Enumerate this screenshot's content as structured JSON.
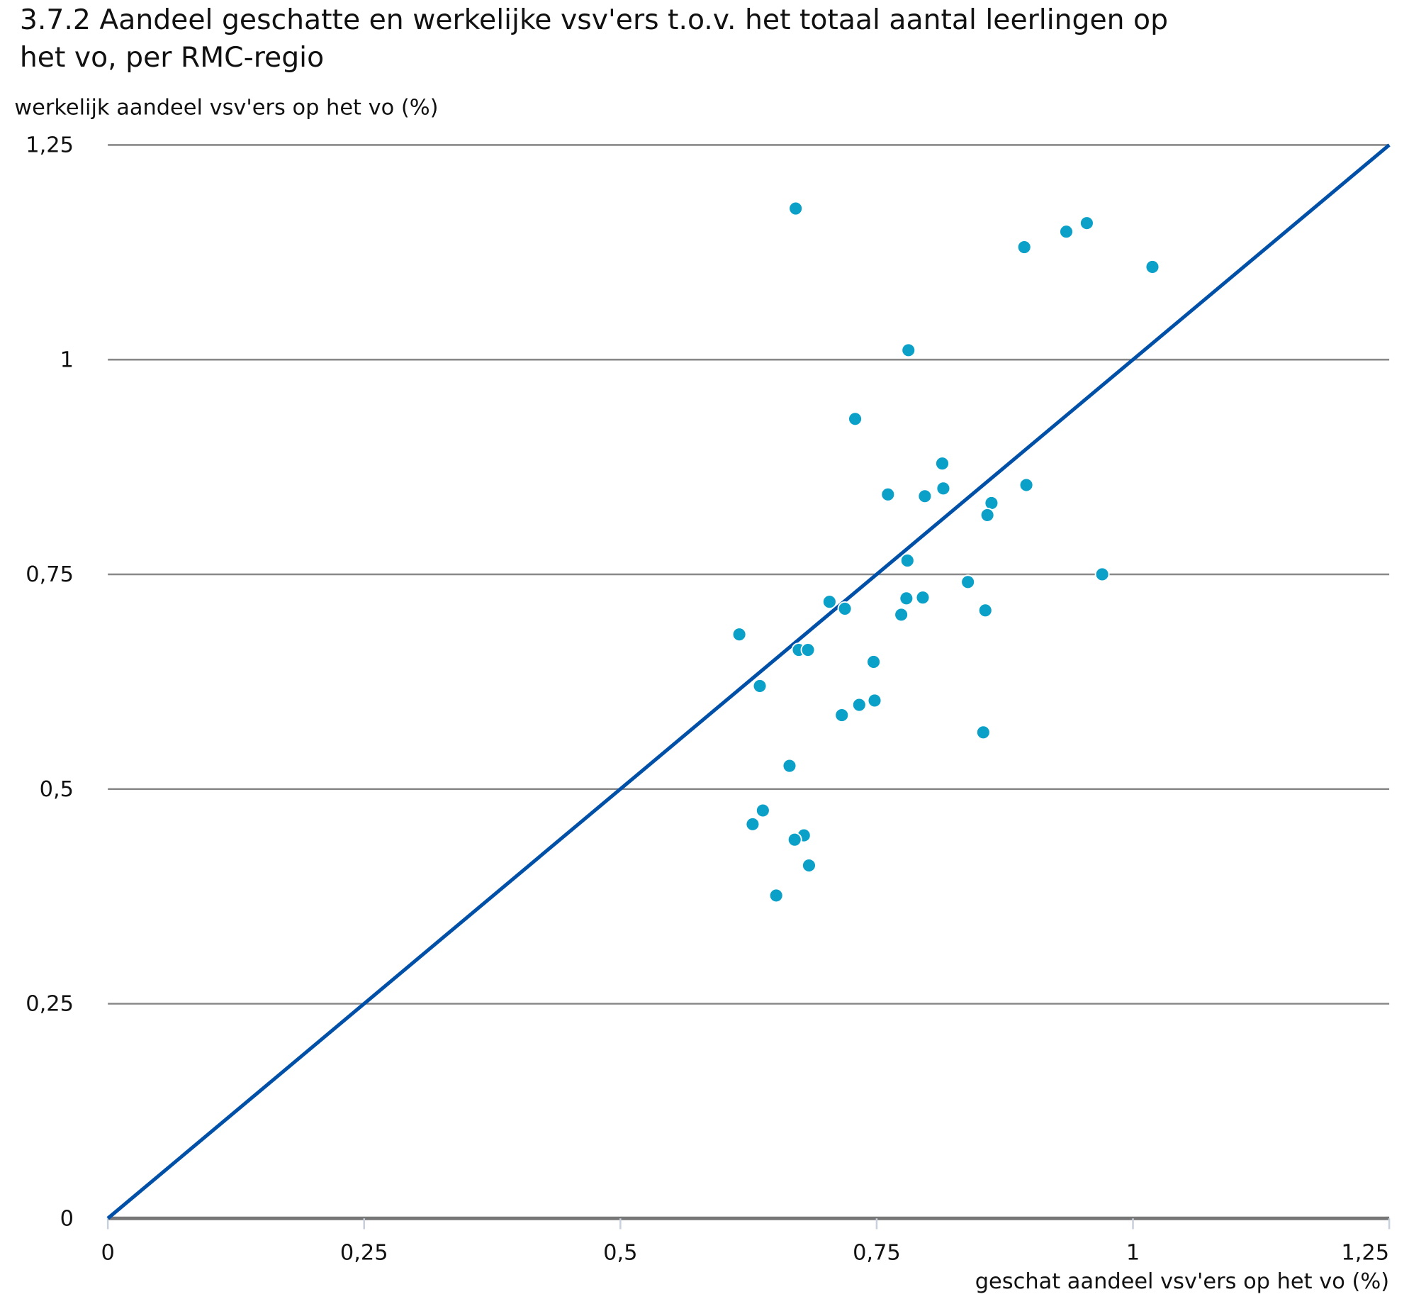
{
  "chart_data": {
    "type": "scatter",
    "title_line1": "3.7.2 Aandeel geschatte en werkelijke vsv'ers t.o.v. het totaal aantal leerlingen op",
    "title_line2": "het vo, per RMC-regio",
    "xlabel": "geschat aandeel vsv'ers op het vo (%)",
    "ylabel": "werkelijk aandeel vsv'ers op het vo (%)",
    "xlim": [
      0,
      1.25
    ],
    "ylim": [
      0,
      1.25
    ],
    "x_ticks": [
      {
        "v": 0,
        "label": "0"
      },
      {
        "v": 0.25,
        "label": "0,25"
      },
      {
        "v": 0.5,
        "label": "0,5"
      },
      {
        "v": 0.75,
        "label": "0,75"
      },
      {
        "v": 1,
        "label": "1"
      },
      {
        "v": 1.25,
        "label": "1,25"
      }
    ],
    "y_ticks": [
      {
        "v": 0,
        "label": "0"
      },
      {
        "v": 0.25,
        "label": "0,25"
      },
      {
        "v": 0.5,
        "label": "0,5"
      },
      {
        "v": 0.75,
        "label": "0,75"
      },
      {
        "v": 1,
        "label": "1"
      },
      {
        "v": 1.25,
        "label": "1,25"
      }
    ],
    "grid": true,
    "reference_line": {
      "from": [
        0,
        0
      ],
      "to": [
        1.25,
        1.25
      ],
      "color": "#0050a8"
    },
    "point_color": "#0aa0c8",
    "points": [
      [
        0.671,
        1.176
      ],
      [
        0.894,
        1.131
      ],
      [
        0.935,
        1.149
      ],
      [
        0.955,
        1.159
      ],
      [
        1.019,
        1.108
      ],
      [
        0.781,
        1.011
      ],
      [
        0.729,
        0.931
      ],
      [
        0.814,
        0.879
      ],
      [
        0.761,
        0.843
      ],
      [
        0.797,
        0.841
      ],
      [
        0.815,
        0.85
      ],
      [
        0.896,
        0.854
      ],
      [
        0.862,
        0.833
      ],
      [
        0.858,
        0.819
      ],
      [
        0.78,
        0.766
      ],
      [
        0.97,
        0.75
      ],
      [
        0.839,
        0.741
      ],
      [
        0.779,
        0.722
      ],
      [
        0.795,
        0.723
      ],
      [
        0.704,
        0.718
      ],
      [
        0.719,
        0.71
      ],
      [
        0.774,
        0.703
      ],
      [
        0.856,
        0.708
      ],
      [
        0.616,
        0.68
      ],
      [
        0.674,
        0.662
      ],
      [
        0.683,
        0.662
      ],
      [
        0.747,
        0.648
      ],
      [
        0.636,
        0.62
      ],
      [
        0.748,
        0.603
      ],
      [
        0.733,
        0.598
      ],
      [
        0.716,
        0.586
      ],
      [
        0.854,
        0.566
      ],
      [
        0.665,
        0.527
      ],
      [
        0.639,
        0.475
      ],
      [
        0.629,
        0.459
      ],
      [
        0.679,
        0.446
      ],
      [
        0.67,
        0.441
      ],
      [
        0.684,
        0.411
      ],
      [
        0.652,
        0.376
      ]
    ]
  }
}
